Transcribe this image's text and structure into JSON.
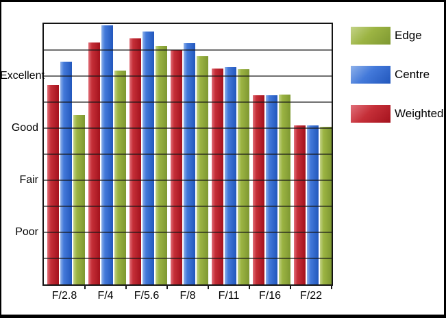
{
  "chart_data": {
    "type": "bar",
    "title": "",
    "categories": [
      "F/2.8",
      "F/4",
      "F/5.6",
      "F/8",
      "F/11",
      "F/16",
      "F/22"
    ],
    "series": [
      {
        "name": "Weighted",
        "colors": {
          "light": "#e1707a",
          "base": "#c52f38",
          "dark": "#a4121d"
        },
        "values": [
          7.65,
          9.3,
          9.45,
          9.0,
          8.3,
          7.25,
          6.1
        ]
      },
      {
        "name": "Centre",
        "colors": {
          "light": "#8fb2ea",
          "base": "#4379da",
          "dark": "#2257bc"
        },
        "values": [
          8.55,
          9.95,
          9.7,
          9.25,
          8.35,
          7.25,
          6.1
        ]
      },
      {
        "name": "Edge",
        "colors": {
          "light": "#c3d388",
          "base": "#9cb443",
          "dark": "#7e9831"
        },
        "values": [
          6.5,
          8.2,
          9.15,
          8.75,
          8.25,
          7.3,
          6.05
        ]
      }
    ],
    "y_axis": {
      "range": [
        0,
        10
      ],
      "gridline_step": 1,
      "labels": [
        {
          "text": "Excellent",
          "value": 8
        },
        {
          "text": "Good",
          "value": 6
        },
        {
          "text": "Fair",
          "value": 4
        },
        {
          "text": "Poor",
          "value": 2
        }
      ]
    },
    "legend": {
      "position": "right",
      "items": [
        "Edge",
        "Centre",
        "Weighted"
      ]
    },
    "grid": true,
    "gridline_color": "#1a1a1a",
    "background": "#ffffff"
  }
}
